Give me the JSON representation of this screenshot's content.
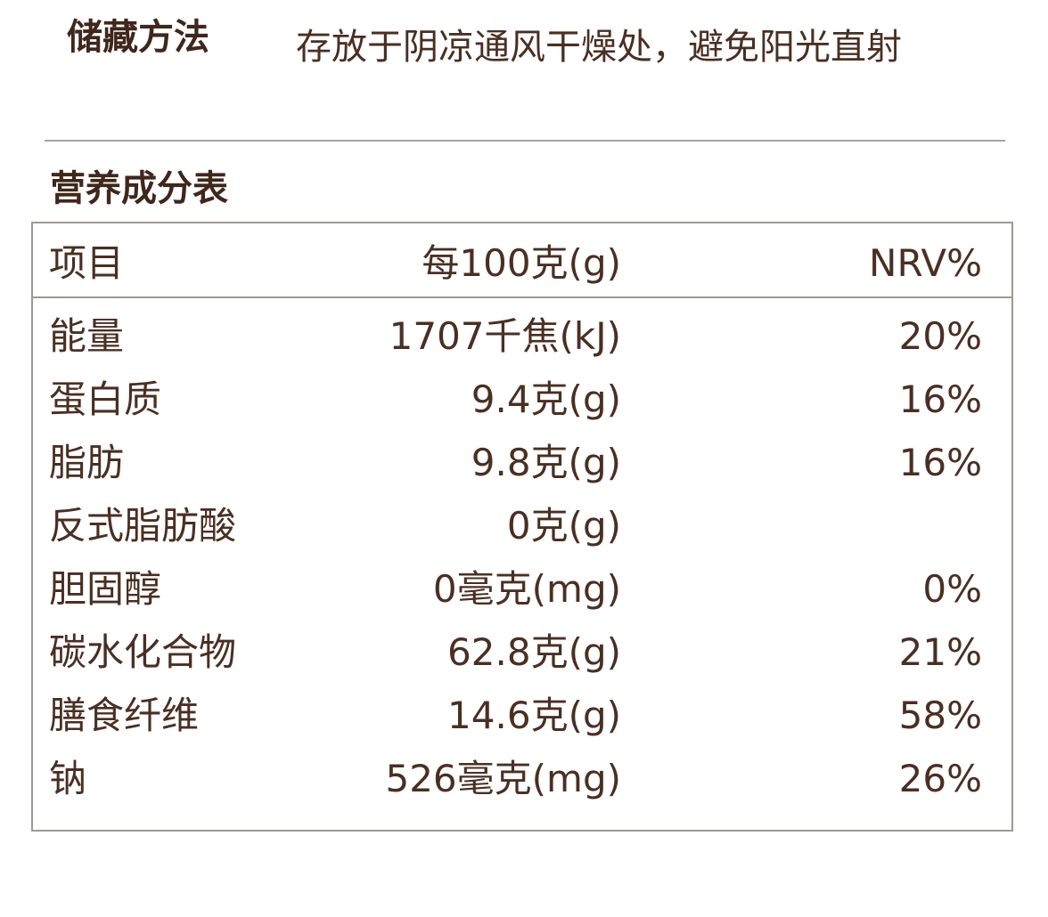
{
  "storage": {
    "label": "储藏方法",
    "text": "存放于阴凉通风干燥处，避免阳光直射"
  },
  "nutrition": {
    "title": "营养成分表",
    "headers": {
      "item": "项目",
      "per100": "每100克(g)",
      "nrv": "NRV%"
    },
    "rows": [
      {
        "name": "能量",
        "amount": "1707千焦(kJ)",
        "nrv": "20%"
      },
      {
        "name": "蛋白质",
        "amount": "9.4克(g)",
        "nrv": "16%"
      },
      {
        "name": "脂肪",
        "amount": "9.8克(g)",
        "nrv": "16%"
      },
      {
        "name": "反式脂肪酸",
        "amount": "0克(g)",
        "nrv": ""
      },
      {
        "name": "胆固醇",
        "amount": "0毫克(mg)",
        "nrv": "0%"
      },
      {
        "name": "碳水化合物",
        "amount": "62.8克(g)",
        "nrv": "21%"
      },
      {
        "name": "膳食纤维",
        "amount": "14.6克(g)",
        "nrv": "58%"
      },
      {
        "name": "钠",
        "amount": "526毫克(mg)",
        "nrv": "26%"
      }
    ]
  }
}
